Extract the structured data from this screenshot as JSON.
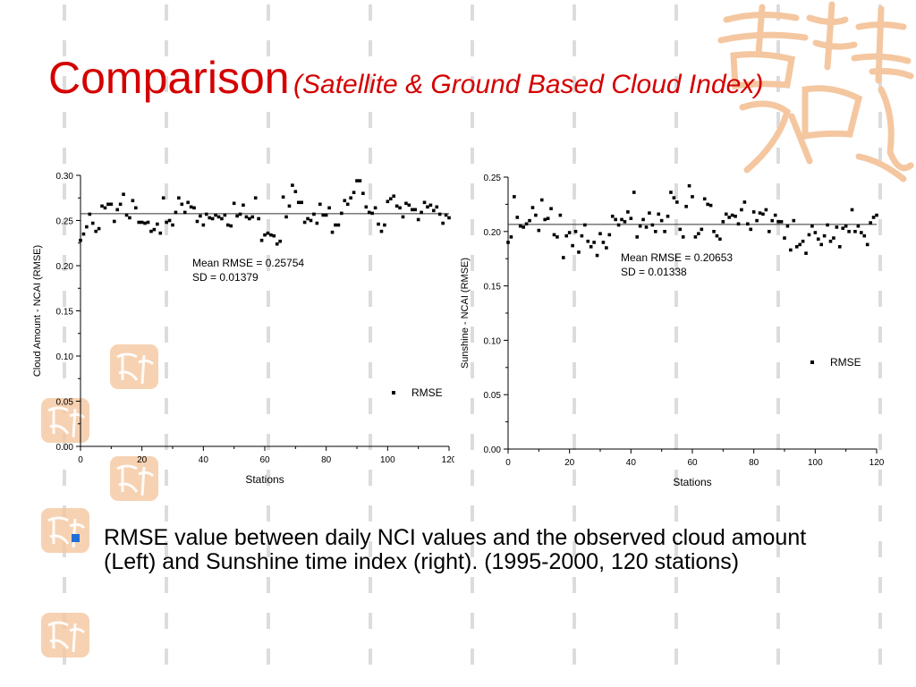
{
  "slide": {
    "title_main": "Comparison",
    "title_sub": "(Satellite & Ground Based Cloud Index)",
    "bullet": "RMSE value between daily NCI values and the observed cloud amount (Left) and Sunshine time index (right). (1995-2000, 120 stations)",
    "colors": {
      "title": "#d40000",
      "bullet_marker": "#1f6fd6",
      "decoration": "#f4c7a0",
      "guide_bars": "#dcdcdc"
    },
    "decorations": [
      "calligraphy-watermark",
      "seal-stamp"
    ]
  },
  "chart_data": [
    {
      "type": "scatter",
      "xlabel": "Stations",
      "ylabel": "Cloud Amount - NCAI (RMSE)",
      "xlim": [
        0,
        120
      ],
      "ylim": [
        0,
        0.3
      ],
      "xticks": [
        "0",
        "20",
        "40",
        "60",
        "80",
        "100",
        "120"
      ],
      "yticks": [
        "0.00",
        "0.05",
        "0.10",
        "0.15",
        "0.20",
        "0.25",
        "0.30"
      ],
      "legend": "RMSE",
      "legend_position": "bottom-right",
      "annotation": [
        "Mean RMSE = 0.25754",
        "SD = 0.01379"
      ],
      "mean_line": 0.25754,
      "series": [
        {
          "name": "RMSE",
          "values": [
            0.228,
            0.235,
            0.243,
            0.257,
            0.247,
            0.238,
            0.241,
            0.266,
            0.264,
            0.268,
            0.268,
            0.249,
            0.262,
            0.268,
            0.279,
            0.256,
            0.253,
            0.272,
            0.264,
            0.248,
            0.248,
            0.247,
            0.248,
            0.238,
            0.24,
            0.246,
            0.236,
            0.275,
            0.248,
            0.25,
            0.245,
            0.259,
            0.275,
            0.268,
            0.259,
            0.27,
            0.265,
            0.264,
            0.249,
            0.255,
            0.245,
            0.257,
            0.253,
            0.252,
            0.256,
            0.254,
            0.252,
            0.256,
            0.245,
            0.244,
            0.269,
            0.255,
            0.257,
            0.267,
            0.254,
            0.252,
            0.254,
            0.275,
            0.252,
            0.228,
            0.234,
            0.236,
            0.234,
            0.233,
            0.224,
            0.227,
            0.276,
            0.254,
            0.266,
            0.289,
            0.282,
            0.27,
            0.27,
            0.248,
            0.252,
            0.25,
            0.257,
            0.247,
            0.268,
            0.256,
            0.256,
            0.264,
            0.237,
            0.245,
            0.245,
            0.258,
            0.272,
            0.268,
            0.275,
            0.281,
            0.294,
            0.294,
            0.28,
            0.265,
            0.259,
            0.258,
            0.264,
            0.246,
            0.238,
            0.245,
            0.271,
            0.274,
            0.277,
            0.266,
            0.264,
            0.254,
            0.269,
            0.267,
            0.262,
            0.262,
            0.251,
            0.259,
            0.27,
            0.265,
            0.267,
            0.261,
            0.265,
            0.257,
            0.247,
            0.256,
            0.253
          ]
        }
      ]
    },
    {
      "type": "scatter",
      "xlabel": "Stations",
      "ylabel": "Sunshine - NCAI (RMSE)",
      "xlim": [
        0,
        120
      ],
      "ylim": [
        0,
        0.25
      ],
      "xticks": [
        "0",
        "20",
        "40",
        "60",
        "80",
        "100",
        "120"
      ],
      "yticks": [
        "0.00",
        "0.05",
        "0.10",
        "0.15",
        "0.20",
        "0.25"
      ],
      "legend": "RMSE",
      "legend_position": "right",
      "annotation": [
        "Mean RMSE = 0.20653",
        "SD = 0.01338"
      ],
      "mean_line": 0.20653,
      "series": [
        {
          "name": "RMSE",
          "values": [
            0.19,
            0.195,
            0.232,
            0.213,
            0.205,
            0.204,
            0.207,
            0.21,
            0.222,
            0.215,
            0.201,
            0.229,
            0.211,
            0.212,
            0.221,
            0.197,
            0.195,
            0.215,
            0.176,
            0.196,
            0.199,
            0.187,
            0.2,
            0.181,
            0.196,
            0.206,
            0.191,
            0.186,
            0.19,
            0.178,
            0.198,
            0.19,
            0.185,
            0.197,
            0.214,
            0.211,
            0.206,
            0.211,
            0.209,
            0.218,
            0.212,
            0.236,
            0.195,
            0.205,
            0.211,
            0.204,
            0.217,
            0.206,
            0.2,
            0.216,
            0.21,
            0.2,
            0.214,
            0.236,
            0.231,
            0.227,
            0.202,
            0.195,
            0.223,
            0.242,
            0.232,
            0.195,
            0.198,
            0.202,
            0.23,
            0.225,
            0.224,
            0.2,
            0.196,
            0.193,
            0.209,
            0.216,
            0.213,
            0.215,
            0.214,
            0.207,
            0.22,
            0.227,
            0.207,
            0.202,
            0.218,
            0.21,
            0.217,
            0.216,
            0.22,
            0.2,
            0.21,
            0.215,
            0.209,
            0.209,
            0.194,
            0.205,
            0.183,
            0.21,
            0.186,
            0.188,
            0.191,
            0.18,
            0.197,
            0.205,
            0.199,
            0.193,
            0.188,
            0.196,
            0.206,
            0.191,
            0.194,
            0.204,
            0.186,
            0.203,
            0.205,
            0.2,
            0.22,
            0.2,
            0.205,
            0.199,
            0.196,
            0.188,
            0.208,
            0.213,
            0.215
          ]
        }
      ]
    }
  ]
}
